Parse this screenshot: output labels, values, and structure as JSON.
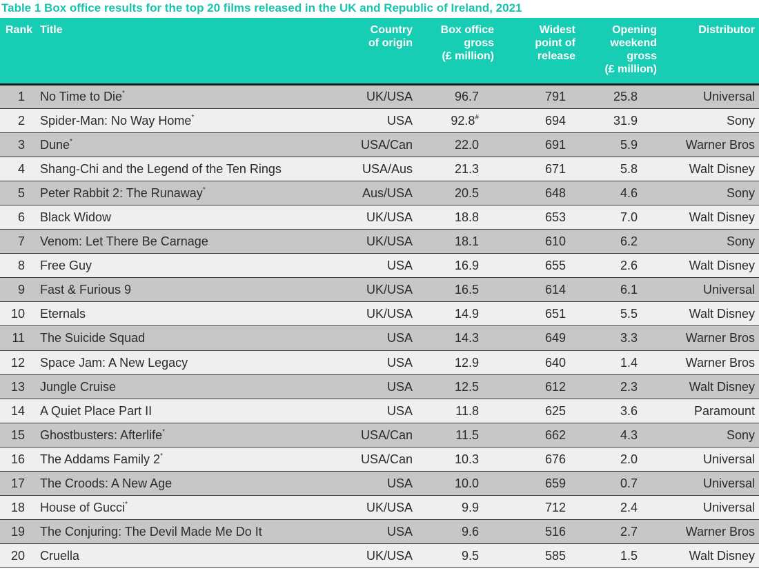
{
  "caption": "Table 1 Box office results for the top 20 films released in the UK and Republic of Ireland, 2021",
  "headers": {
    "rank": "Rank",
    "title": "Title",
    "country": [
      "Country",
      "of origin"
    ],
    "gross": [
      "Box office",
      "gross",
      "(£ million)"
    ],
    "widest": [
      "Widest",
      "point of",
      "release"
    ],
    "opening": [
      "Opening",
      "weekend",
      "gross",
      "(£ million)"
    ],
    "distributor": "Distributor"
  },
  "colors": {
    "accent": "#17cdb4",
    "caption": "#17c4ae",
    "row_dark": "#c7c7c7",
    "row_light": "#efefef"
  },
  "rows": [
    {
      "rank": "1",
      "title": "No Time to Die",
      "mark": "*",
      "country": "UK/USA",
      "gross": "96.7",
      "gross_mark": "",
      "widest": "791",
      "opening": "25.8",
      "distributor": "Universal"
    },
    {
      "rank": "2",
      "title": "Spider-Man: No Way Home",
      "mark": "*",
      "country": "USA",
      "gross": "92.8",
      "gross_mark": "#",
      "widest": "694",
      "opening": "31.9",
      "distributor": "Sony"
    },
    {
      "rank": "3",
      "title": "Dune",
      "mark": "*",
      "country": "USA/Can",
      "gross": "22.0",
      "gross_mark": "",
      "widest": "691",
      "opening": "5.9",
      "distributor": "Warner Bros"
    },
    {
      "rank": "4",
      "title": "Shang-Chi and the Legend of the Ten Rings",
      "mark": "",
      "country": "USA/Aus",
      "gross": "21.3",
      "gross_mark": "",
      "widest": "671",
      "opening": "5.8",
      "distributor": "Walt Disney"
    },
    {
      "rank": "5",
      "title": "Peter Rabbit 2: The Runaway",
      "mark": "*",
      "country": "Aus/USA",
      "gross": "20.5",
      "gross_mark": "",
      "widest": "648",
      "opening": "4.6",
      "distributor": "Sony"
    },
    {
      "rank": "6",
      "title": "Black Widow",
      "mark": "",
      "country": "UK/USA",
      "gross": "18.8",
      "gross_mark": "",
      "widest": "653",
      "opening": "7.0",
      "distributor": "Walt Disney"
    },
    {
      "rank": "7",
      "title": "Venom: Let There Be Carnage",
      "mark": "",
      "country": "UK/USA",
      "gross": "18.1",
      "gross_mark": "",
      "widest": "610",
      "opening": "6.2",
      "distributor": "Sony"
    },
    {
      "rank": "8",
      "title": "Free Guy",
      "mark": "",
      "country": "USA",
      "gross": "16.9",
      "gross_mark": "",
      "widest": "655",
      "opening": "2.6",
      "distributor": "Walt Disney"
    },
    {
      "rank": "9",
      "title": "Fast & Furious 9",
      "mark": "",
      "country": "UK/USA",
      "gross": "16.5",
      "gross_mark": "",
      "widest": "614",
      "opening": "6.1",
      "distributor": "Universal"
    },
    {
      "rank": "10",
      "title": "Eternals",
      "mark": "",
      "country": "UK/USA",
      "gross": "14.9",
      "gross_mark": "",
      "widest": "651",
      "opening": "5.5",
      "distributor": "Walt Disney"
    },
    {
      "rank": "11",
      "title": "The Suicide Squad",
      "mark": "",
      "country": "USA",
      "gross": "14.3",
      "gross_mark": "",
      "widest": "649",
      "opening": "3.3",
      "distributor": "Warner Bros"
    },
    {
      "rank": "12",
      "title": "Space Jam: A New Legacy",
      "mark": "",
      "country": "USA",
      "gross": "12.9",
      "gross_mark": "",
      "widest": "640",
      "opening": "1.4",
      "distributor": "Warner Bros"
    },
    {
      "rank": "13",
      "title": "Jungle Cruise",
      "mark": "",
      "country": "USA",
      "gross": "12.5",
      "gross_mark": "",
      "widest": "612",
      "opening": "2.3",
      "distributor": "Walt Disney"
    },
    {
      "rank": "14",
      "title": "A Quiet Place Part II",
      "mark": "",
      "country": "USA",
      "gross": "11.8",
      "gross_mark": "",
      "widest": "625",
      "opening": "3.6",
      "distributor": "Paramount"
    },
    {
      "rank": "15",
      "title": "Ghostbusters: Afterlife",
      "mark": "*",
      "country": "USA/Can",
      "gross": "11.5",
      "gross_mark": "",
      "widest": "662",
      "opening": "4.3",
      "distributor": "Sony"
    },
    {
      "rank": "16",
      "title": "The Addams Family 2",
      "mark": "*",
      "country": "USA/Can",
      "gross": "10.3",
      "gross_mark": "",
      "widest": "676",
      "opening": "2.0",
      "distributor": "Universal"
    },
    {
      "rank": "17",
      "title": "The Croods: A New Age",
      "mark": "",
      "country": "USA",
      "gross": "10.0",
      "gross_mark": "",
      "widest": "659",
      "opening": "0.7",
      "distributor": "Universal"
    },
    {
      "rank": "18",
      "title": "House of Gucci",
      "mark": "*",
      "country": "UK/USA",
      "gross": "9.9",
      "gross_mark": "",
      "widest": "712",
      "opening": "2.4",
      "distributor": "Universal"
    },
    {
      "rank": "19",
      "title": "The Conjuring: The Devil Made Me Do It",
      "mark": "",
      "country": "USA",
      "gross": "9.6",
      "gross_mark": "",
      "widest": "516",
      "opening": "2.7",
      "distributor": "Warner Bros"
    },
    {
      "rank": "20",
      "title": "Cruella",
      "mark": "",
      "country": "UK/USA",
      "gross": "9.5",
      "gross_mark": "",
      "widest": "585",
      "opening": "1.5",
      "distributor": "Walt Disney"
    }
  ]
}
